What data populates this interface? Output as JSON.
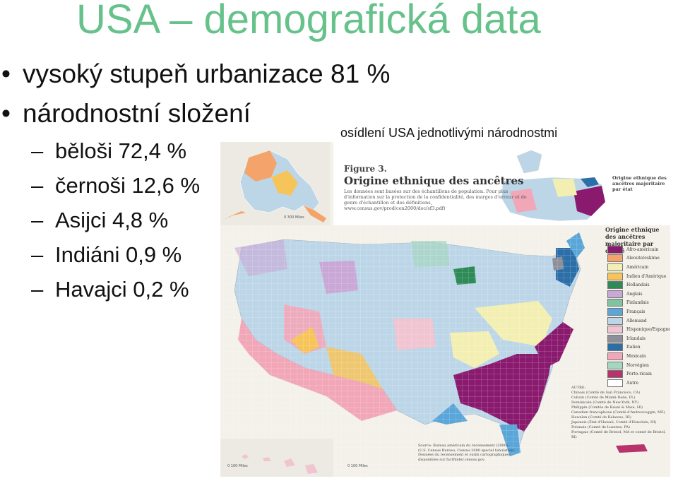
{
  "slide": {
    "title": "USA – demografická data",
    "bullets": [
      "vysoký stupeň urbanizace 81 %",
      "národnostní složení"
    ],
    "sub_items": [
      "běloši 72,4 %",
      "černoši 12,6 %",
      "Asijci 4,8 %",
      "Indiáni 0,9 %",
      "Havajci 0,2 %"
    ],
    "map_caption": "osídlení USA jednotlivými národnostmi"
  },
  "map": {
    "figure_label": "Figure 3.",
    "figure_title": "Origine ethnique des ancêtres",
    "figure_note": "Les données sont basées sur des échantillons de population. Pour plus d'information sur la protection de la confidentialité, des marges d'erreur et de genre d'échantillon et des définitions, www.census.gov/prod/cen2000/doc/sf3.pdf)",
    "inset_title": "Origine ethnique des ancêtres majoritaire par état",
    "legend_title": "Origine ethnique des ancêtres majoritaire par comté",
    "legend": [
      {
        "label": "Afro-américain",
        "color": "#8a1a6e"
      },
      {
        "label": "Aleoute/eskimo",
        "color": "#f4a46a"
      },
      {
        "label": "Américain",
        "color": "#f3efb2"
      },
      {
        "label": "Indien d'Amérique",
        "color": "#f7c45a"
      },
      {
        "label": "Hollandais",
        "color": "#2e8b57"
      },
      {
        "label": "Anglais",
        "color": "#c9a7d6"
      },
      {
        "label": "Finlandais",
        "color": "#7fc3a0"
      },
      {
        "label": "Français",
        "color": "#5aa6d8"
      },
      {
        "label": "Allemand",
        "color": "#bcd6e8"
      },
      {
        "label": "Hispanique/Espagnol",
        "color": "#f0c4d0"
      },
      {
        "label": "Irlandais",
        "color": "#8d8f9a"
      },
      {
        "label": "Italien",
        "color": "#2b6ea8"
      },
      {
        "label": "Mexicain",
        "color": "#f2a7b8"
      },
      {
        "label": "Norvégien",
        "color": "#a5d6c0"
      },
      {
        "label": "Porto-ricain",
        "color": "#b8326b"
      },
      {
        "label": "Autre",
        "color": "#ffffff"
      }
    ],
    "autre_lines": [
      "AUTRE:",
      "Chinois (Comté de San Francisco, CA)",
      "Cubain (Comté de Miami-Dade, FL)",
      "Dominicain (Comté de New-York, NY)",
      "Philippin (Comtés de Kauai & Maui, HI)",
      "Canadien francophone (Comté d'Androscoggin, ME)",
      "Hawaïen (Comté de Kalawao, HI)",
      "Japonais (État d'Hawaii, Comté d'Honolulu, HI)",
      "Polonais (Comté de Luzerne, PA)",
      "Portugais (Comté de Bristol, MA et comté de Bristol, RI)"
    ],
    "source_lines": [
      "Source: Bureau américain du recensement (2000)",
      "(U.S. Census Bureau, Census 2000 special tabulation)",
      "Données du recensement et outils cartographiques",
      "disponibles sur factfinder.census.gov."
    ],
    "scale_alaska": "0    300 Miles",
    "scale_hawaii": "0    100 Miles",
    "scale_main": "0    100 Miles"
  }
}
